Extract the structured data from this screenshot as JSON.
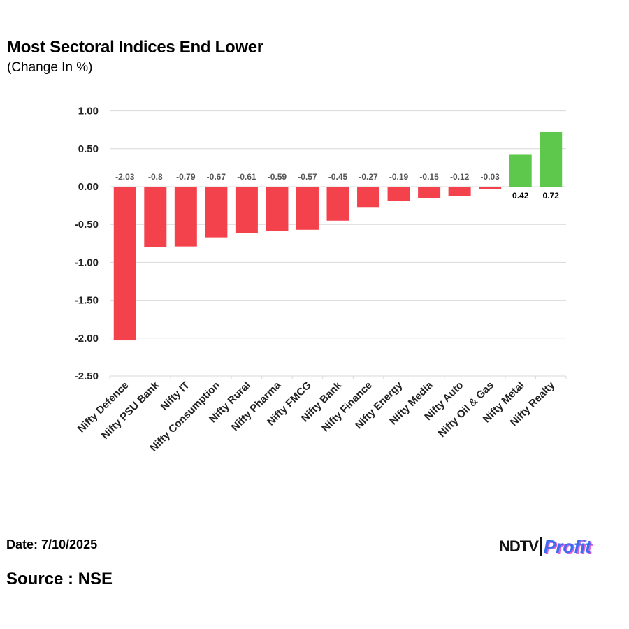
{
  "header": {
    "title": "Most Sectoral Indices End Lower",
    "subtitle": "(Change In %)"
  },
  "footer": {
    "date": "Date: 7/10/2025",
    "source": "Source : NSE",
    "logo_ndtv": "NDTV",
    "logo_profit": "Profit"
  },
  "colors": {
    "negative": "#f4424d",
    "positive": "#5ec84c",
    "grid": "#d9d9d9",
    "negative_label": "#555555",
    "positive_label": "#000000"
  },
  "chart_data": {
    "type": "bar",
    "title": "Most Sectoral Indices End Lower",
    "subtitle": "(Change In %)",
    "xlabel": "",
    "ylabel": "",
    "ylim": [
      -2.5,
      1.0
    ],
    "yticks": [
      1.0,
      0.5,
      0.0,
      -0.5,
      -1.0,
      -1.5,
      -2.0,
      -2.5
    ],
    "ytick_labels": [
      "1.00",
      "0.50",
      "0.00",
      "-0.50",
      "-1.00",
      "-1.50",
      "-2.00",
      "-2.50"
    ],
    "grid": true,
    "legend": "none",
    "categories": [
      "Nifty Defence",
      "Nifty PSU Bank",
      "Nifty IT",
      "Nifty Consumption",
      "Nifty Rural",
      "Nifty Pharma",
      "Nifty FMCG",
      "Nifty Bank",
      "Nifty Finance",
      "Nifty Energy",
      "Nifty Media",
      "Nifty Auto",
      "Nifty Oil & Gas",
      "Nifty Metal",
      "Nifty Realty"
    ],
    "values": [
      -2.03,
      -0.8,
      -0.79,
      -0.67,
      -0.61,
      -0.59,
      -0.57,
      -0.45,
      -0.27,
      -0.19,
      -0.15,
      -0.12,
      -0.03,
      0.42,
      0.72
    ],
    "value_labels": [
      "-2.03",
      "-0.8",
      "-0.79",
      "-0.67",
      "-0.61",
      "-0.59",
      "-0.57",
      "-0.45",
      "-0.27",
      "-0.19",
      "-0.15",
      "-0.12",
      "-0.03",
      "0.42",
      "0.72"
    ]
  }
}
